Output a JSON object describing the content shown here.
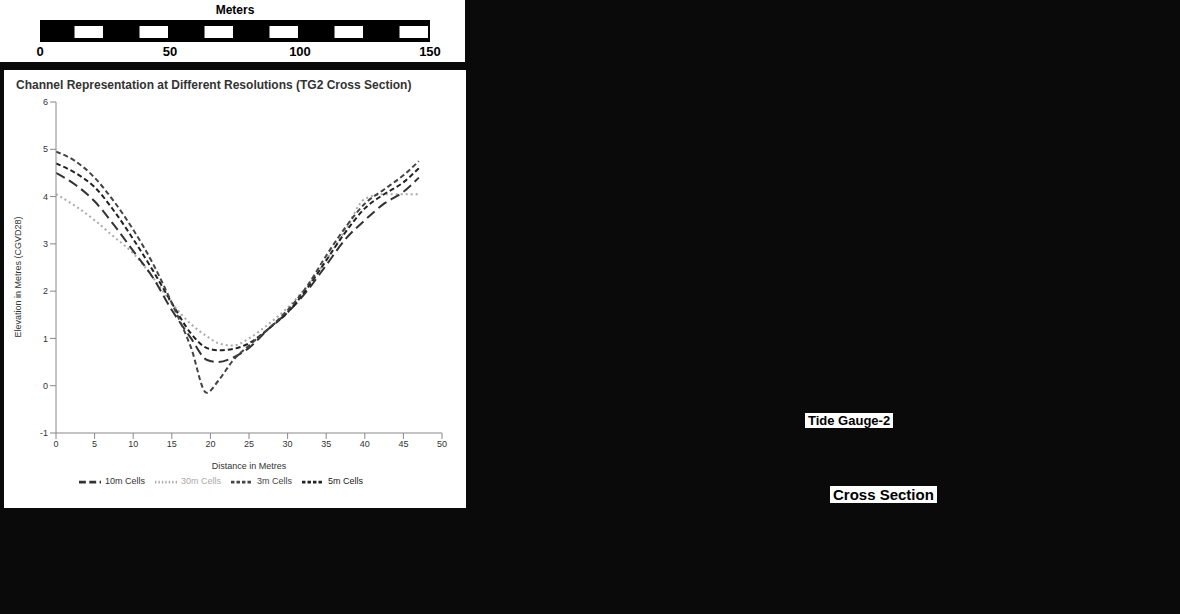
{
  "chart_data": {
    "type": "line",
    "title": "Channel Representation at Different Resolutions (TG2 Cross Section)",
    "x_label": "Distance in Metres",
    "y_label": "Elevation in Metres (CGVD28)",
    "x": [
      0,
      2.5,
      5,
      7.5,
      10,
      12.5,
      15,
      17.5,
      19.5,
      21,
      23,
      25,
      27.5,
      30,
      32.5,
      35,
      37.5,
      40,
      42.5,
      45,
      47
    ],
    "series": [
      {
        "name": "30m Cells",
        "color": "#aaaaaa",
        "line_style": "dotted",
        "values": [
          4.05,
          3.8,
          3.5,
          3.15,
          2.8,
          2.3,
          1.75,
          1.3,
          1.05,
          0.9,
          0.85,
          1.0,
          1.3,
          1.65,
          2.1,
          2.65,
          3.3,
          3.95,
          4.05,
          4.05,
          4.05
        ]
      },
      {
        "name": "10m Cells",
        "color": "#333333",
        "line_style": "long_dash",
        "values": [
          4.5,
          4.25,
          3.9,
          3.4,
          2.85,
          2.3,
          1.6,
          1.0,
          0.55,
          0.5,
          0.6,
          0.8,
          1.2,
          1.55,
          2.0,
          2.55,
          3.1,
          3.5,
          3.85,
          4.1,
          4.4
        ]
      },
      {
        "name": "5m Cells",
        "color": "#222222",
        "line_style": "dashed",
        "values": [
          4.7,
          4.5,
          4.2,
          3.7,
          3.1,
          2.45,
          1.75,
          1.1,
          0.8,
          0.75,
          0.78,
          0.9,
          1.2,
          1.55,
          2.05,
          2.65,
          3.25,
          3.75,
          4.05,
          4.3,
          4.6
        ]
      },
      {
        "name": "3m Cells",
        "color": "#444444",
        "line_style": "dashed",
        "values": [
          4.95,
          4.75,
          4.4,
          3.9,
          3.3,
          2.6,
          1.75,
          0.8,
          -0.15,
          0.1,
          0.55,
          0.85,
          1.2,
          1.6,
          2.1,
          2.75,
          3.35,
          3.85,
          4.15,
          4.45,
          4.75
        ]
      }
    ],
    "xlim": [
      0,
      50
    ],
    "xticks": [
      0,
      5,
      10,
      15,
      20,
      25,
      30,
      35,
      40,
      45,
      50
    ],
    "ylim": [
      -1,
      6
    ],
    "yticks": [
      -1,
      0,
      1,
      2,
      3,
      4,
      5,
      6
    ],
    "grid": false,
    "legend": "bottom"
  },
  "map": {
    "scale_bar": {
      "title": "Meters",
      "range": [
        0,
        150
      ],
      "ticks": [
        0,
        50,
        100,
        150
      ]
    },
    "labels": [
      "Tide Gauge-2",
      "Cross Section"
    ]
  }
}
